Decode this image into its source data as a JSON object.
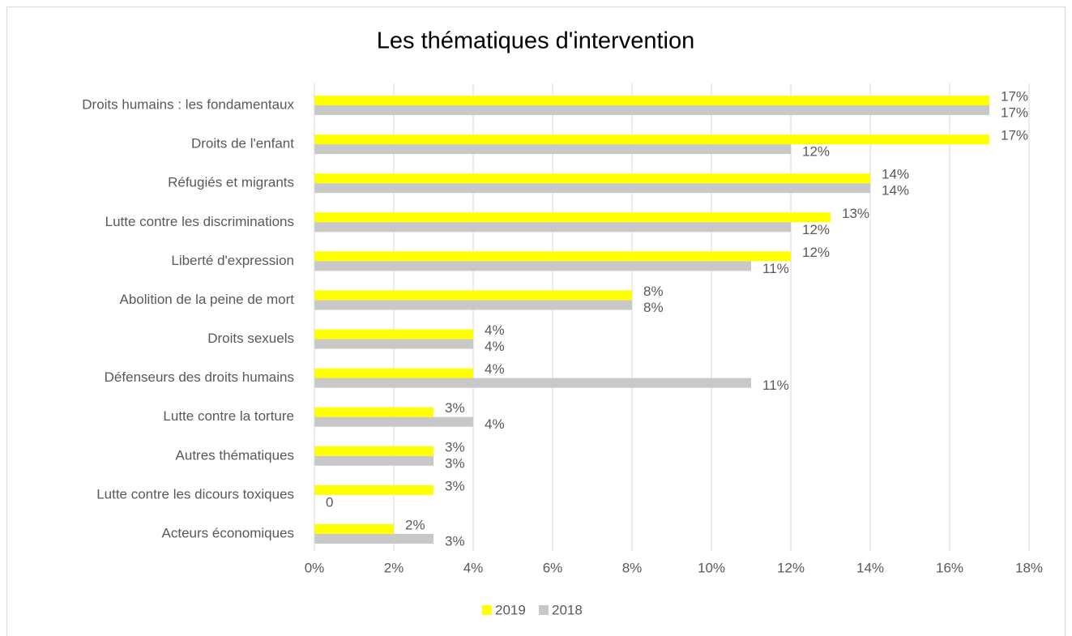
{
  "chart_data": {
    "type": "bar",
    "orientation": "horizontal",
    "title": "Les thématiques d'intervention",
    "categories": [
      "Droits humains : les fondamentaux",
      "Droits de l'enfant",
      "Réfugiés et migrants",
      "Lutte contre les discriminations",
      "Liberté d'expression",
      "Abolition de la peine de mort",
      "Droits sexuels",
      "Défenseurs des droits humains",
      "Lutte contre la torture",
      "Autres thématiques",
      "Lutte contre les dicours toxiques",
      "Acteurs économiques"
    ],
    "series": [
      {
        "name": "2019",
        "color": "#ffff00",
        "values": [
          17,
          17,
          14,
          13,
          12,
          8,
          4,
          4,
          3,
          3,
          3,
          2
        ],
        "value_labels": [
          "17%",
          "17%",
          "14%",
          "13%",
          "12%",
          "8%",
          "4%",
          "4%",
          "3%",
          "3%",
          "3%",
          "2%"
        ]
      },
      {
        "name": "2018",
        "color": "#c8c8c8",
        "values": [
          17,
          12,
          14,
          12,
          11,
          8,
          4,
          11,
          4,
          3,
          0,
          3
        ],
        "value_labels": [
          "17%",
          "12%",
          "14%",
          "12%",
          "11%",
          "8%",
          "4%",
          "11%",
          "4%",
          "3%",
          "0",
          "3%"
        ]
      }
    ],
    "xlim": [
      0,
      18
    ],
    "xticks": [
      {
        "value": 0,
        "label": "0%"
      },
      {
        "value": 2,
        "label": "2%"
      },
      {
        "value": 4,
        "label": "4%"
      },
      {
        "value": 6,
        "label": "6%"
      },
      {
        "value": 8,
        "label": "8%"
      },
      {
        "value": 10,
        "label": "10%"
      },
      {
        "value": 12,
        "label": "12%"
      },
      {
        "value": 14,
        "label": "14%"
      },
      {
        "value": 16,
        "label": "16%"
      },
      {
        "value": 18,
        "label": "18%"
      }
    ],
    "grid": true,
    "legend": "bottom"
  }
}
